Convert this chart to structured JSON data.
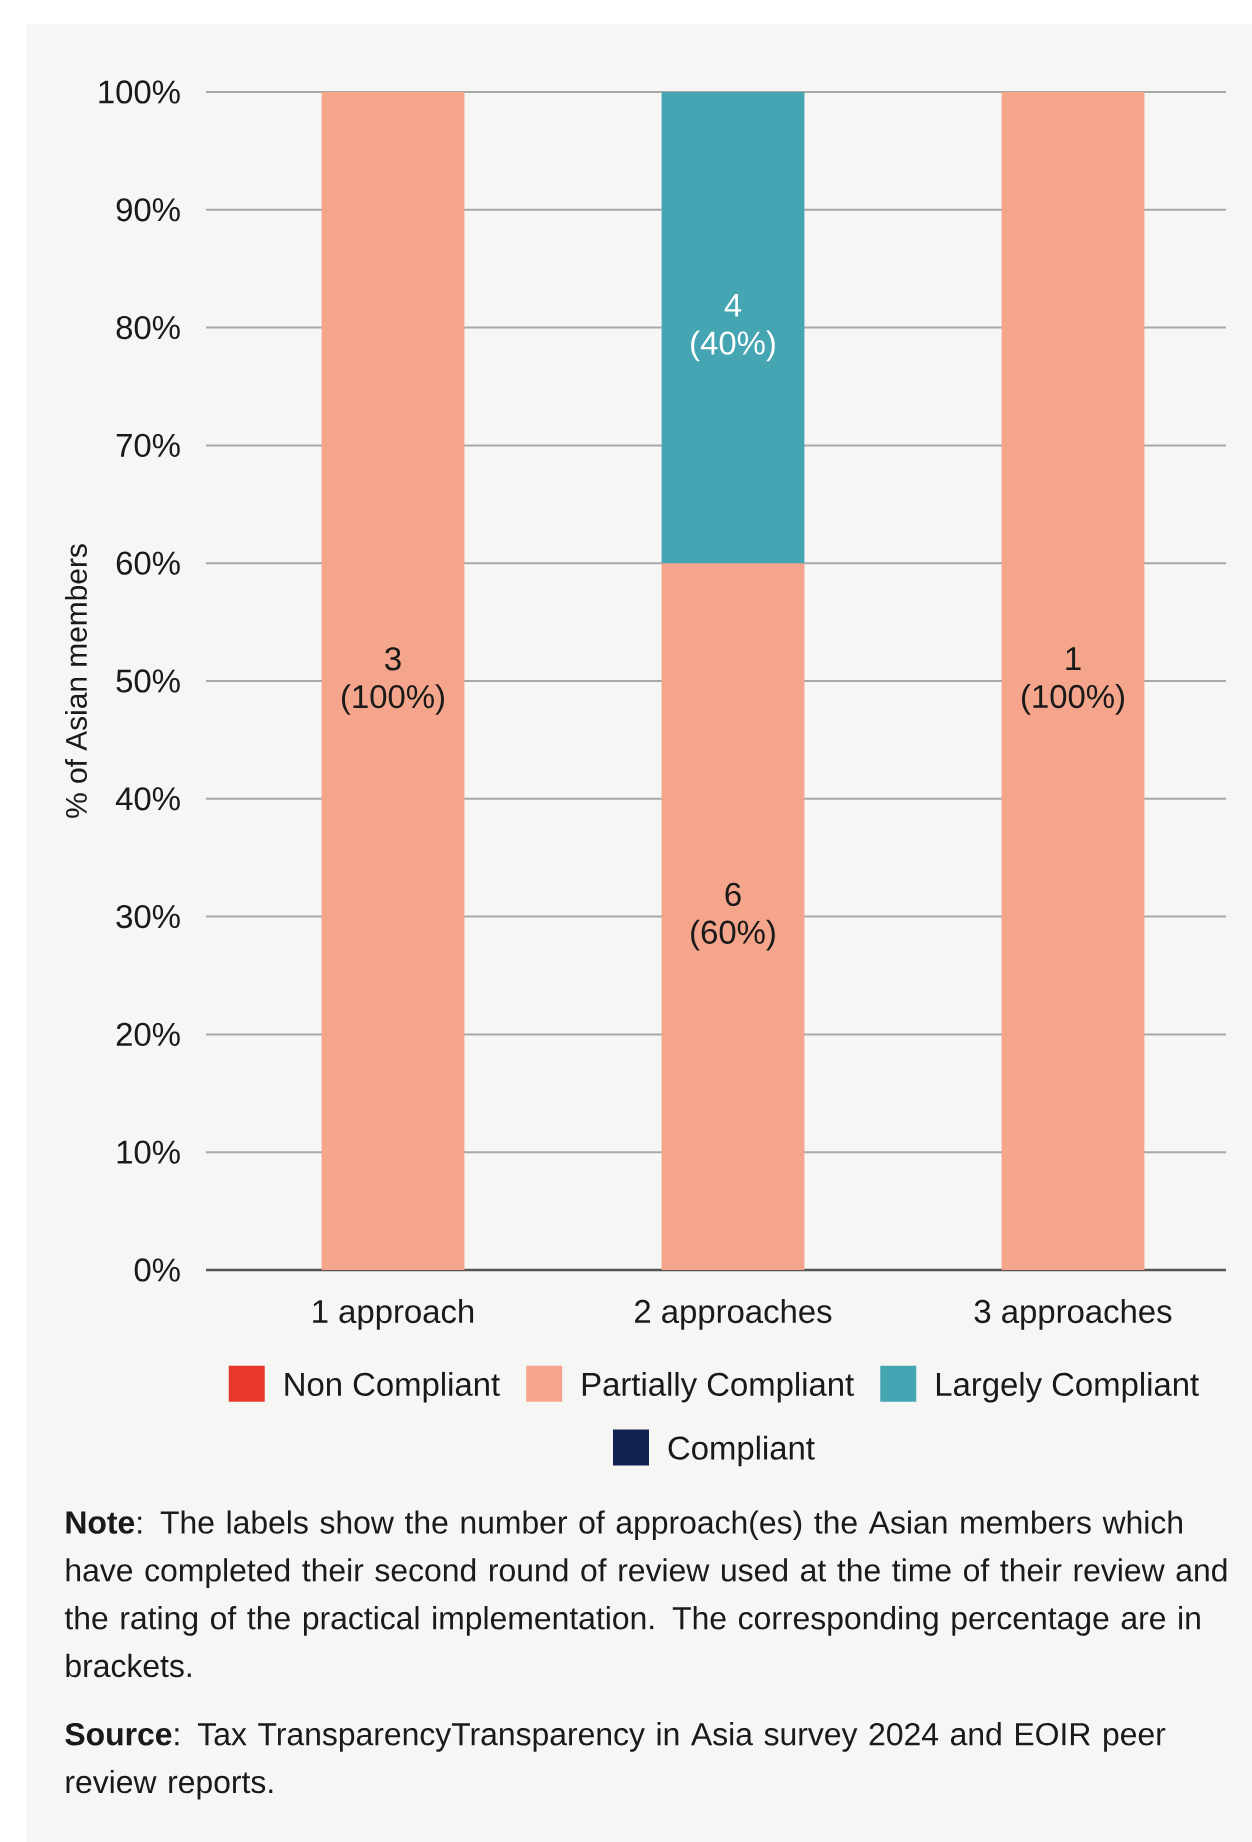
{
  "chart_data": {
    "type": "bar",
    "stacked": true,
    "categories": [
      "1 approach",
      "2 approaches",
      "3 approaches"
    ],
    "series": [
      {
        "name": "Non Compliant",
        "color": "#e8382d",
        "values": [
          0,
          0,
          0
        ]
      },
      {
        "name": "Partially Compliant",
        "color": "#f4a58b",
        "values": [
          100,
          60,
          100
        ],
        "value_labels": [
          "3 (100%)",
          "6 (60%)",
          "1 (100%)"
        ]
      },
      {
        "name": "Largely Compliant",
        "color": "#45a5b3",
        "values": [
          0,
          40,
          0
        ],
        "value_labels": [
          null,
          "4 (40%)",
          null
        ]
      },
      {
        "name": "Compliant",
        "color": "#132150",
        "values": [
          0,
          0,
          0
        ]
      }
    ],
    "ylabel": "% of Asian members",
    "ylim": [
      0,
      100
    ],
    "yticks": [
      {
        "value": 0,
        "label": "0%"
      },
      {
        "value": 10,
        "label": "10%"
      },
      {
        "value": 20,
        "label": "20%"
      },
      {
        "value": 30,
        "label": "30%"
      },
      {
        "value": 40,
        "label": "40%"
      },
      {
        "value": 50,
        "label": "50%"
      },
      {
        "value": 60,
        "label": "60%"
      },
      {
        "value": 70,
        "label": "70%"
      },
      {
        "value": 80,
        "label": "80%"
      },
      {
        "value": 90,
        "label": "90%"
      },
      {
        "value": 100,
        "label": "100%"
      }
    ],
    "grid": "y",
    "legend": "bottom",
    "annotations": [
      "**Note**: The labels show the number of approach(es) the Asian members which have completed their second round of review used at the time of their review and the rating of the practical implementation. The corresponding percentage are in brackets.",
      "**Source**: Tax TransparencyTransparency in Asia survey 2024 and EOIR peer review reports."
    ]
  }
}
